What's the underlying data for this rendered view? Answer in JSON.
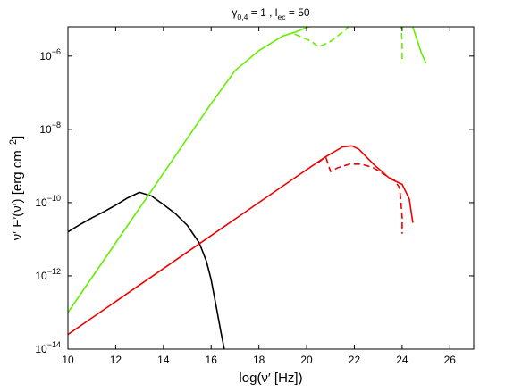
{
  "chart_data": {
    "type": "line",
    "title": {
      "parts": [
        {
          "text": "γ",
          "baseline": "normal"
        },
        {
          "text": "0,4",
          "baseline": "sub"
        },
        {
          "text": " = 1 , l",
          "baseline": "normal"
        },
        {
          "text": "ec",
          "baseline": "sub"
        },
        {
          "text": " = 50",
          "baseline": "normal"
        }
      ]
    },
    "xlabel": "log(ν′ [Hz])",
    "ylabel": {
      "parts": [
        {
          "text": "ν′ F′(ν′) [erg cm",
          "baseline": "normal"
        },
        {
          "text": "−2",
          "baseline": "super"
        },
        {
          "text": "]",
          "baseline": "normal"
        }
      ]
    },
    "xlim": [
      10,
      27
    ],
    "ylim_log10": [
      -14,
      -5.2
    ],
    "y_scale": "log",
    "grid": false,
    "legend": "none",
    "x_ticks": [
      {
        "value": 10,
        "label": "10"
      },
      {
        "value": 12,
        "label": "12"
      },
      {
        "value": 14,
        "label": "14"
      },
      {
        "value": 16,
        "label": "16"
      },
      {
        "value": 18,
        "label": "18"
      },
      {
        "value": 20,
        "label": "20"
      },
      {
        "value": 22,
        "label": "22"
      },
      {
        "value": 24,
        "label": "24"
      },
      {
        "value": 26,
        "label": "26"
      }
    ],
    "y_ticks": [
      {
        "value": -14,
        "base": "10",
        "exp": "−14"
      },
      {
        "value": -12,
        "base": "10",
        "exp": "−12"
      },
      {
        "value": -10,
        "base": "10",
        "exp": "−10"
      },
      {
        "value": -8,
        "base": "10",
        "exp": "−8"
      },
      {
        "value": -6,
        "base": "10",
        "exp": "−6"
      }
    ],
    "series": [
      {
        "color": "#000000",
        "dash": "solid",
        "x": [
          10,
          10.5,
          11,
          11.5,
          12,
          12.5,
          13,
          13.5,
          14,
          14.5,
          15,
          15.5,
          15.8,
          16,
          16.2,
          16.4,
          16.55
        ],
        "y": [
          -10.8,
          -10.6,
          -10.42,
          -10.25,
          -10.07,
          -9.87,
          -9.72,
          -9.82,
          -10.05,
          -10.3,
          -10.62,
          -11.1,
          -11.6,
          -12.1,
          -12.8,
          -13.5,
          -14.0
        ]
      },
      {
        "color": "#66ee00",
        "dash": "solid",
        "x": [
          10,
          11,
          12,
          13,
          14,
          15,
          16,
          17,
          18,
          19,
          19.5,
          20,
          21,
          22,
          23,
          23.5,
          23.8,
          24,
          24.2,
          24.5,
          24.8,
          25
        ],
        "y": [
          -13.0,
          -12.05,
          -11.1,
          -10.15,
          -9.2,
          -8.25,
          -7.3,
          -6.4,
          -5.85,
          -5.45,
          -5.35,
          -5.22,
          -4.95,
          -4.7,
          -4.45,
          -4.33,
          -4.32,
          -4.45,
          -4.75,
          -5.3,
          -5.9,
          -6.2
        ]
      },
      {
        "color": "#66ee00",
        "dash": "dashed",
        "x": [
          19.5,
          19.8,
          20.2,
          20.5,
          21,
          21.5,
          22,
          22.5,
          23,
          23.5,
          23.8,
          23.9,
          24,
          24
        ],
        "y": [
          -5.4,
          -5.48,
          -5.6,
          -5.75,
          -5.6,
          -5.35,
          -5.05,
          -4.8,
          -4.6,
          -4.45,
          -4.4,
          -4.65,
          -5.6,
          -6.2
        ]
      },
      {
        "color": "#ee0000",
        "dash": "solid",
        "x": [
          10,
          11,
          12,
          13,
          14,
          15,
          16,
          17,
          18,
          19,
          20,
          20.8,
          21.5,
          21.9,
          22.2,
          22.8,
          23.5,
          24,
          24.3,
          24.45
        ],
        "y": [
          -13.6,
          -13.15,
          -12.7,
          -12.25,
          -11.8,
          -11.35,
          -10.9,
          -10.45,
          -10.0,
          -9.55,
          -9.1,
          -8.75,
          -8.48,
          -8.45,
          -8.55,
          -8.95,
          -9.35,
          -9.5,
          -9.9,
          -10.55
        ]
      },
      {
        "color": "#ee0000",
        "dash": "dashed",
        "x": [
          20.5,
          20.8,
          21.0,
          21.3,
          21.8,
          22.3,
          22.8,
          23.3,
          23.7,
          23.9,
          24.0,
          24.0
        ],
        "y": [
          -8.9,
          -8.75,
          -9.15,
          -9.05,
          -8.95,
          -8.95,
          -9.05,
          -9.25,
          -9.4,
          -9.6,
          -10.4,
          -10.85
        ]
      }
    ]
  }
}
